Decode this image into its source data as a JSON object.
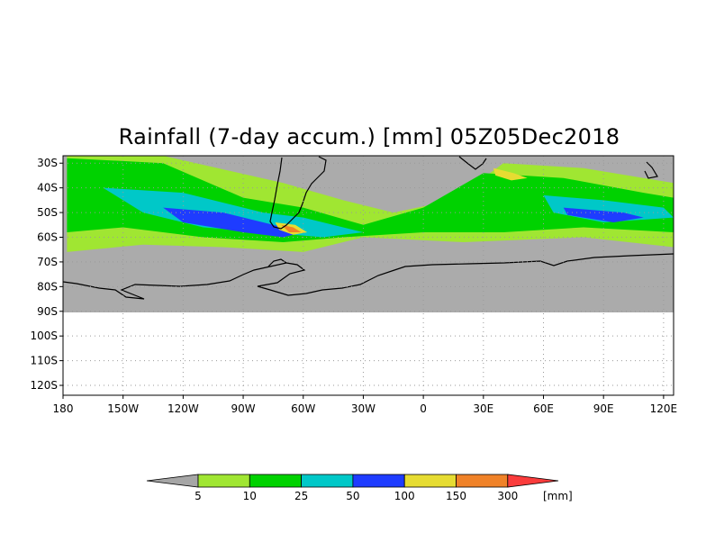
{
  "title": "Rainfall (7-day accum.) [mm] 05Z05Dec2018",
  "map": {
    "lon_range": [
      180,
      485
    ],
    "lat_range": [
      -124,
      -27
    ],
    "data_lat_min": -90,
    "y_ticks": [
      {
        "value": -30,
        "label": "30S"
      },
      {
        "value": -40,
        "label": "40S"
      },
      {
        "value": -50,
        "label": "50S"
      },
      {
        "value": -60,
        "label": "60S"
      },
      {
        "value": -70,
        "label": "70S"
      },
      {
        "value": -80,
        "label": "80S"
      },
      {
        "value": -90,
        "label": "90S"
      },
      {
        "value": -100,
        "label": "100S"
      },
      {
        "value": -110,
        "label": "110S"
      },
      {
        "value": -120,
        "label": "120S"
      }
    ],
    "x_ticks": [
      {
        "value": 180,
        "label": "180"
      },
      {
        "value": 210,
        "label": "150W"
      },
      {
        "value": 240,
        "label": "120W"
      },
      {
        "value": 270,
        "label": "90W"
      },
      {
        "value": 300,
        "label": "60W"
      },
      {
        "value": 330,
        "label": "30W"
      },
      {
        "value": 360,
        "label": "0"
      },
      {
        "value": 390,
        "label": "30E"
      },
      {
        "value": 420,
        "label": "60E"
      },
      {
        "value": 450,
        "label": "90E"
      },
      {
        "value": 480,
        "label": "120E"
      }
    ],
    "background_color": "#ababab",
    "coast_color": "#000000"
  },
  "legend": {
    "unit": "[mm]",
    "bins": [
      {
        "color": "#a6a6a6",
        "label": "5"
      },
      {
        "color": "#a0e632",
        "label": "10"
      },
      {
        "color": "#00d200",
        "label": "25"
      },
      {
        "color": "#00c8c8",
        "label": "50"
      },
      {
        "color": "#1e3cff",
        "label": "100"
      },
      {
        "color": "#e6dc32",
        "label": "150"
      },
      {
        "color": "#f08228",
        "label": "300"
      },
      {
        "color": "#fa3c3c",
        "label": ""
      }
    ]
  },
  "rain_bands": [
    {
      "level": 1,
      "polygon": [
        [
          182,
          -27
        ],
        [
          230,
          -27
        ],
        [
          290,
          -38
        ],
        [
          320,
          -45
        ],
        [
          345,
          -50
        ],
        [
          375,
          -45
        ],
        [
          400,
          -30
        ],
        [
          440,
          -32
        ],
        [
          485,
          -38
        ],
        [
          485,
          -64
        ],
        [
          440,
          -60
        ],
        [
          380,
          -62
        ],
        [
          330,
          -60
        ],
        [
          300,
          -66
        ],
        [
          260,
          -64
        ],
        [
          220,
          -63
        ],
        [
          182,
          -66
        ]
      ]
    },
    {
      "level": 2,
      "polygon": [
        [
          182,
          -28
        ],
        [
          230,
          -30
        ],
        [
          270,
          -44
        ],
        [
          300,
          -48
        ],
        [
          330,
          -55
        ],
        [
          360,
          -48
        ],
        [
          390,
          -34
        ],
        [
          430,
          -36
        ],
        [
          470,
          -42
        ],
        [
          485,
          -44
        ],
        [
          485,
          -58
        ],
        [
          440,
          -56
        ],
        [
          400,
          -58
        ],
        [
          360,
          -58
        ],
        [
          320,
          -60
        ],
        [
          290,
          -62
        ],
        [
          250,
          -60
        ],
        [
          210,
          -56
        ],
        [
          182,
          -58
        ]
      ]
    },
    {
      "level": 3,
      "polygon": [
        [
          200,
          -40
        ],
        [
          240,
          -42
        ],
        [
          280,
          -50
        ],
        [
          300,
          -52
        ],
        [
          330,
          -58
        ],
        [
          310,
          -60
        ],
        [
          280,
          -58
        ],
        [
          250,
          -56
        ],
        [
          220,
          -50
        ]
      ]
    },
    {
      "level": 3,
      "polygon": [
        [
          420,
          -43
        ],
        [
          450,
          -45
        ],
        [
          480,
          -48
        ],
        [
          485,
          -52
        ],
        [
          450,
          -54
        ],
        [
          425,
          -50
        ]
      ]
    },
    {
      "level": 4,
      "polygon": [
        [
          230,
          -48
        ],
        [
          260,
          -50
        ],
        [
          285,
          -55
        ],
        [
          300,
          -58
        ],
        [
          290,
          -60
        ],
        [
          270,
          -58
        ],
        [
          240,
          -54
        ]
      ]
    },
    {
      "level": 4,
      "polygon": [
        [
          430,
          -48
        ],
        [
          460,
          -50
        ],
        [
          470,
          -52
        ],
        [
          455,
          -54
        ],
        [
          432,
          -51
        ]
      ]
    },
    {
      "level": 5,
      "polygon": [
        [
          286,
          -54
        ],
        [
          296,
          -55
        ],
        [
          302,
          -58
        ],
        [
          295,
          -59
        ],
        [
          288,
          -57
        ]
      ]
    },
    {
      "level": 6,
      "polygon": [
        [
          289,
          -55
        ],
        [
          295,
          -56
        ],
        [
          299,
          -58
        ],
        [
          293,
          -58
        ]
      ]
    },
    {
      "level": 5,
      "polygon": [
        [
          395,
          -32
        ],
        [
          405,
          -34
        ],
        [
          412,
          -36
        ],
        [
          404,
          -37
        ],
        [
          396,
          -35
        ]
      ]
    }
  ]
}
